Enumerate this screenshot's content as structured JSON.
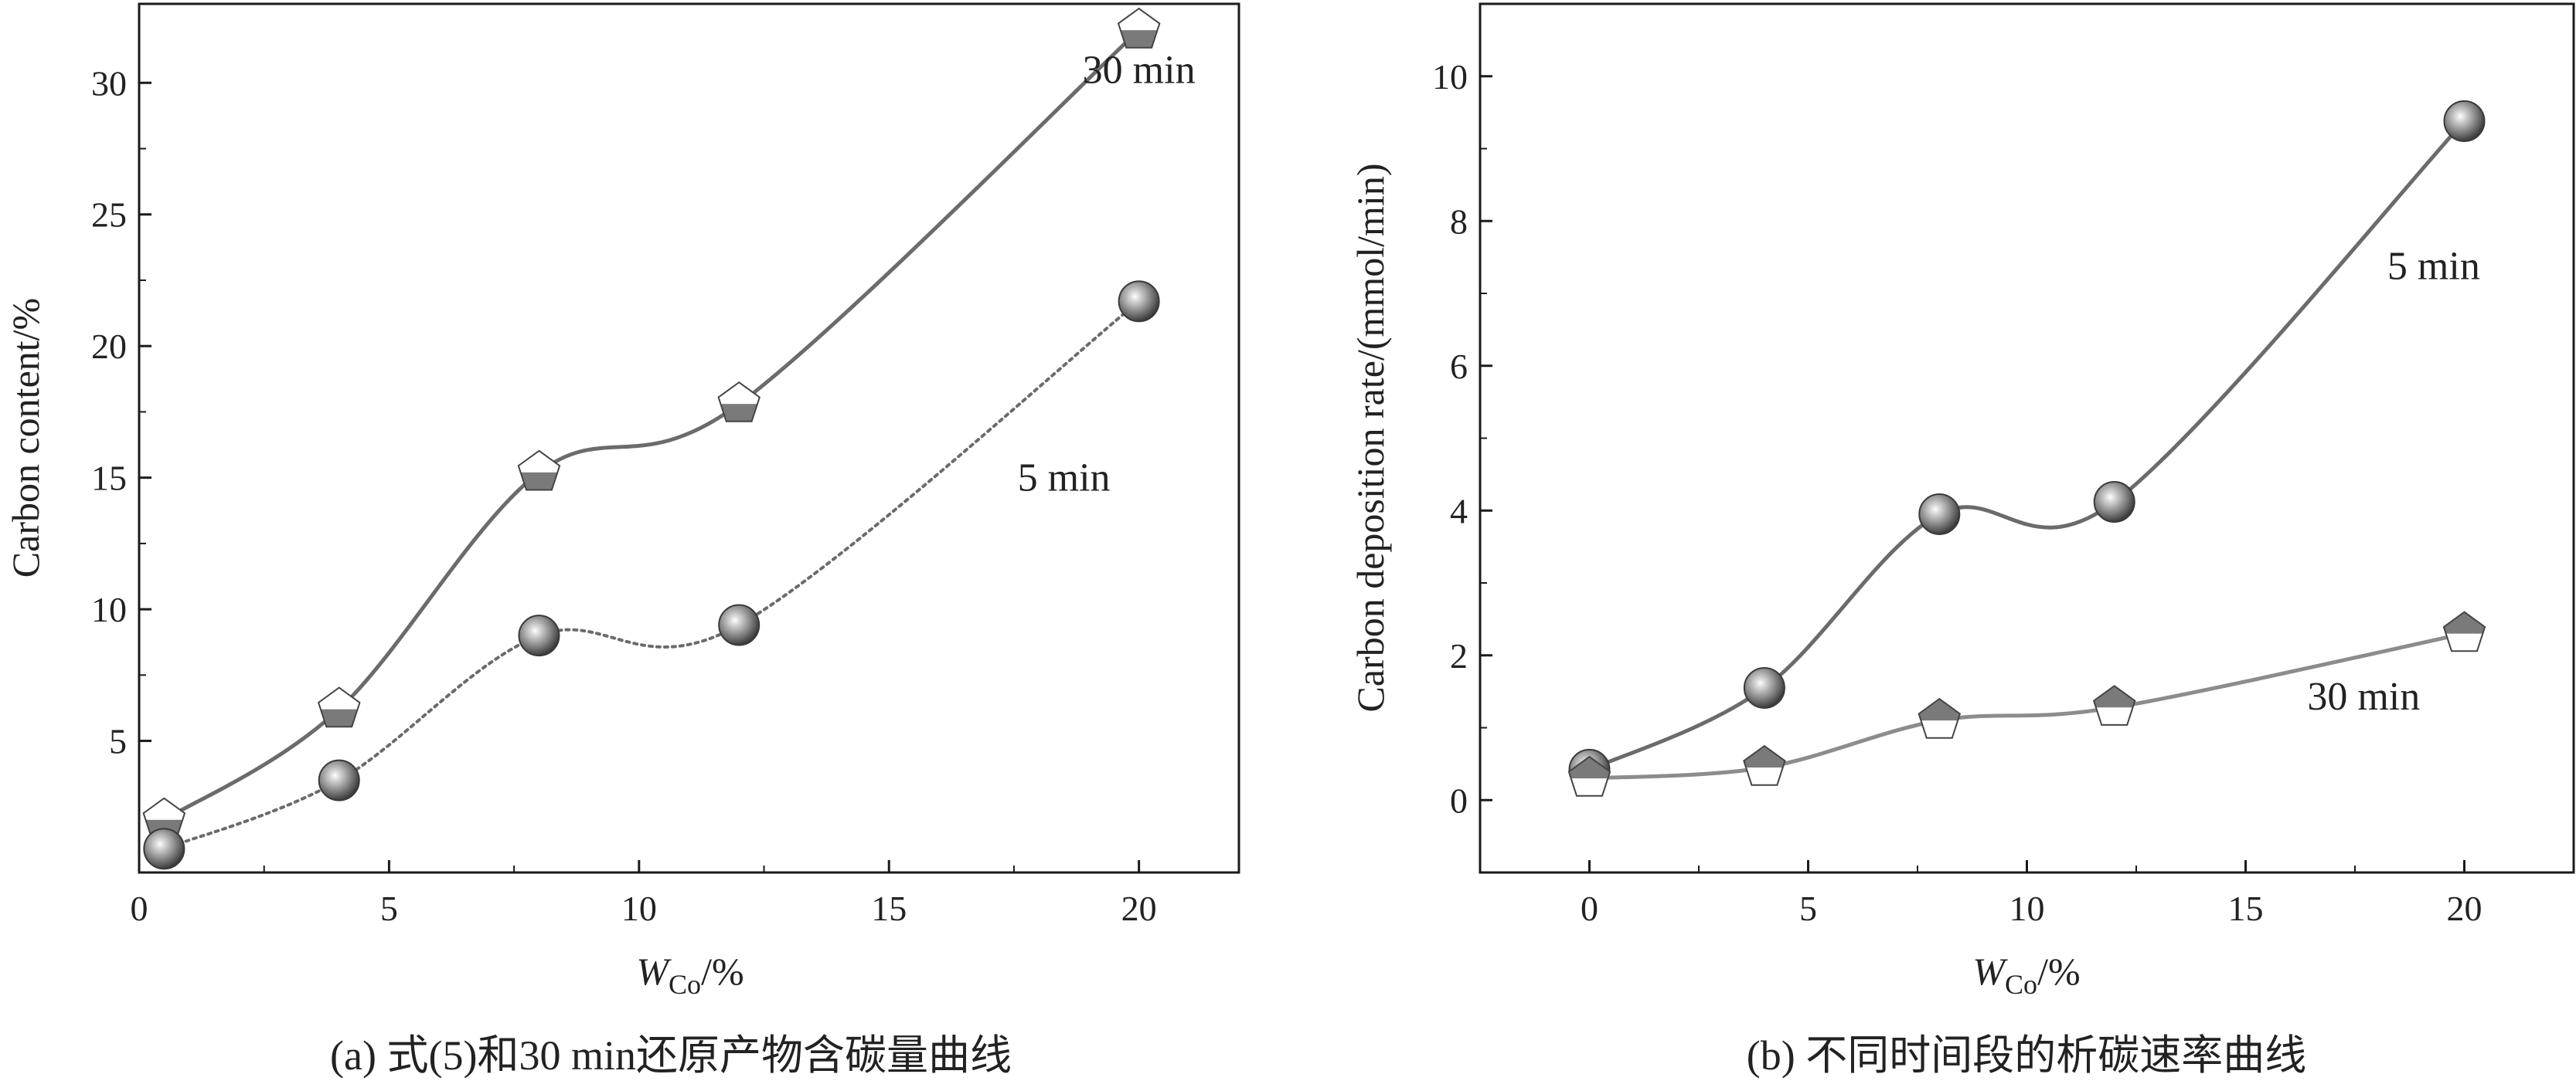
{
  "colors": {
    "axis": "#1a1a1a",
    "series_dark": "#6b6b6b",
    "series_light": "#8c8c8c",
    "marker_fill": "#7a7a7a"
  },
  "chart_data": [
    {
      "id": "a",
      "type": "line",
      "caption": "(a) 式(5)和30 min还原产物含碳量曲线",
      "xlabel_main": "W",
      "xlabel_sub": "Co",
      "xlabel_suffix": "/%",
      "ylabel": "Carbon content/%",
      "xlim": [
        0,
        22
      ],
      "ylim": [
        0,
        33
      ],
      "xticks": [
        0,
        5,
        10,
        15,
        20
      ],
      "xtick_labels": [
        "0",
        "5",
        "10",
        "15",
        "20"
      ],
      "yticks": [
        5,
        10,
        15,
        20,
        25,
        30
      ],
      "ytick_labels": [
        "5",
        "10",
        "15",
        "20",
        "25",
        "30"
      ],
      "grid": false,
      "series": [
        {
          "label": "30 min",
          "marker": "pentagon-half",
          "line": "solid",
          "x": [
            0.5,
            4,
            8,
            12,
            20
          ],
          "y": [
            2.0,
            6.2,
            15.2,
            17.8,
            32.0
          ],
          "label_at": [
            20,
            30
          ]
        },
        {
          "label": "5 min",
          "marker": "sphere",
          "line": "dotted",
          "x": [
            0.5,
            4,
            8,
            12,
            20
          ],
          "y": [
            0.9,
            3.5,
            9.0,
            9.4,
            21.7
          ],
          "label_at": [
            18.5,
            14.5
          ]
        }
      ]
    },
    {
      "id": "b",
      "type": "line",
      "caption": "(b) 不同时间段的析碳速率曲线",
      "xlabel_main": "W",
      "xlabel_sub": "Co",
      "xlabel_suffix": "/%",
      "ylabel": "Carbon deposition rate/(mmol/min)",
      "xlim": [
        -2.5,
        22.5
      ],
      "ylim": [
        -1,
        11
      ],
      "xticks": [
        0,
        5,
        10,
        15,
        20
      ],
      "xtick_labels": [
        "0",
        "5",
        "10",
        "15",
        "20"
      ],
      "yticks": [
        0,
        2,
        4,
        6,
        8,
        10
      ],
      "ytick_labels": [
        "0",
        "2",
        "4",
        "6",
        "8",
        "10"
      ],
      "grid": false,
      "series": [
        {
          "label": "5 min",
          "marker": "sphere",
          "line": "solid",
          "x": [
            0,
            4,
            8,
            12,
            20
          ],
          "y": [
            0.42,
            1.55,
            3.95,
            4.12,
            9.38
          ],
          "label_at": [
            19.3,
            7.2
          ]
        },
        {
          "label": "30 min",
          "marker": "pentagon-half-inv",
          "line": "solid",
          "x": [
            0,
            4,
            8,
            12,
            20
          ],
          "y": [
            0.3,
            0.45,
            1.1,
            1.28,
            2.3
          ],
          "label_at": [
            17.7,
            1.25
          ]
        }
      ]
    }
  ]
}
